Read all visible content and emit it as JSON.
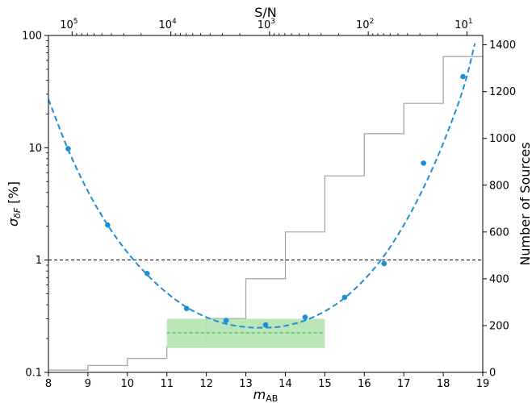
{
  "chart_data": {
    "type": "scatter",
    "xlabel": "m_AB",
    "ylabel": "σ_δF [%]",
    "y2label": "Number of Sources",
    "top_xlabel": "S/N",
    "xlim": [
      8,
      19
    ],
    "ylim": [
      0.1,
      100
    ],
    "yscale": "log",
    "y2lim": [
      0,
      1440
    ],
    "x_ticks": [
      8,
      9,
      10,
      11,
      12,
      13,
      14,
      15,
      16,
      17,
      18,
      19
    ],
    "y_ticks": [
      {
        "value": 0.1,
        "label": "0.1"
      },
      {
        "value": 1,
        "label": "1"
      },
      {
        "value": 10,
        "label": "10"
      },
      {
        "value": 100,
        "label": "100"
      }
    ],
    "y2_ticks": [
      0,
      200,
      400,
      600,
      800,
      1000,
      1200,
      1400
    ],
    "top_ticks": [
      {
        "x": 8.6,
        "base": "10",
        "exp": "5"
      },
      {
        "x": 11.1,
        "base": "10",
        "exp": "4"
      },
      {
        "x": 13.6,
        "base": "10",
        "exp": "3"
      },
      {
        "x": 16.1,
        "base": "10",
        "exp": "2"
      },
      {
        "x": 18.6,
        "base": "10",
        "exp": "1"
      }
    ],
    "points": [
      {
        "x": 8.5,
        "y": 9.8
      },
      {
        "x": 9.5,
        "y": 2.05
      },
      {
        "x": 10.5,
        "y": 0.76
      },
      {
        "x": 11.5,
        "y": 0.37
      },
      {
        "x": 12.5,
        "y": 0.29
      },
      {
        "x": 13.5,
        "y": 0.265
      },
      {
        "x": 14.5,
        "y": 0.31
      },
      {
        "x": 15.5,
        "y": 0.465
      },
      {
        "x": 16.5,
        "y": 0.93
      },
      {
        "x": 17.5,
        "y": 7.3
      },
      {
        "x": 18.5,
        "y": 43
      }
    ],
    "fit_curve": [
      {
        "x": 8.0,
        "y": 27
      },
      {
        "x": 8.5,
        "y": 9.6
      },
      {
        "x": 9.0,
        "y": 4.1
      },
      {
        "x": 9.5,
        "y": 2.05
      },
      {
        "x": 10.0,
        "y": 1.17
      },
      {
        "x": 10.5,
        "y": 0.74
      },
      {
        "x": 11.0,
        "y": 0.51
      },
      {
        "x": 11.5,
        "y": 0.38
      },
      {
        "x": 12.0,
        "y": 0.31
      },
      {
        "x": 12.5,
        "y": 0.27
      },
      {
        "x": 13.0,
        "y": 0.253
      },
      {
        "x": 13.3,
        "y": 0.25
      },
      {
        "x": 13.7,
        "y": 0.252
      },
      {
        "x": 14.0,
        "y": 0.26
      },
      {
        "x": 14.5,
        "y": 0.29
      },
      {
        "x": 15.0,
        "y": 0.35
      },
      {
        "x": 15.5,
        "y": 0.46
      },
      {
        "x": 16.0,
        "y": 0.67
      },
      {
        "x": 16.5,
        "y": 1.09
      },
      {
        "x": 17.0,
        "y": 2.05
      },
      {
        "x": 17.5,
        "y": 4.4
      },
      {
        "x": 18.0,
        "y": 11.0
      },
      {
        "x": 18.5,
        "y": 33
      },
      {
        "x": 18.8,
        "y": 85
      }
    ],
    "threshold_line": {
      "y": 1
    },
    "band": {
      "x0": 11,
      "x1": 15,
      "y0": 0.165,
      "y1": 0.3,
      "line_y": 0.225
    },
    "histogram": {
      "edges": [
        8,
        9,
        10,
        11,
        12,
        13,
        14,
        15,
        16,
        17,
        18,
        19
      ],
      "counts": [
        10,
        30,
        60,
        110,
        230,
        400,
        600,
        840,
        1020,
        1150,
        1350
      ]
    },
    "colors": {
      "points": "#1f8fd4",
      "fit": "#1f8fd4",
      "band_fill": "#b6e5b6",
      "band_line": "#3cb93c",
      "histogram": "#a0a0a0",
      "threshold": "#000000"
    }
  }
}
